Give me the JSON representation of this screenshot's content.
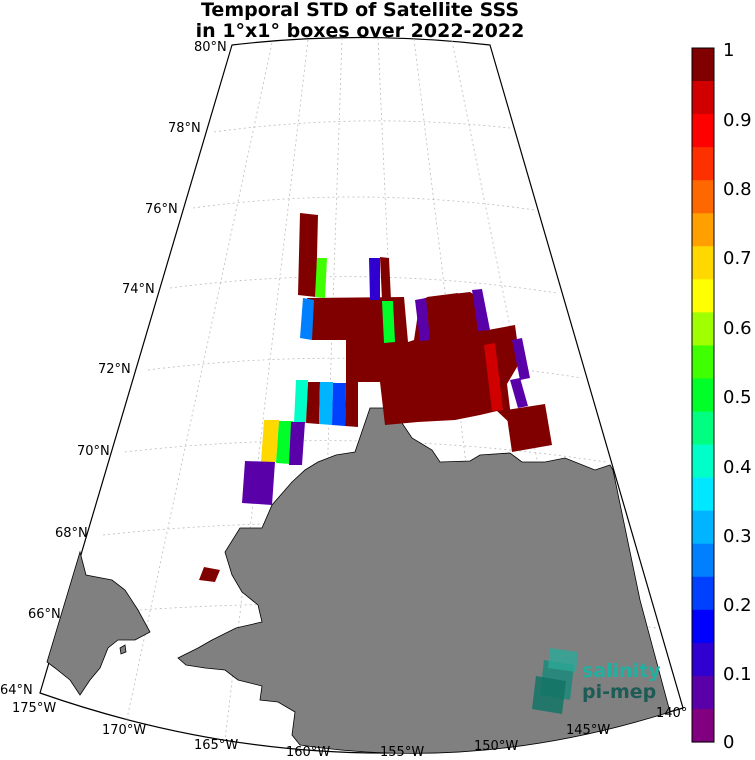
{
  "title": {
    "line1": "Temporal STD of Satellite SSS",
    "line2": "in 1°x1° boxes over 2022-2022"
  },
  "map": {
    "land_color": "#808080",
    "lat_labels": [
      "80°N",
      "78°N",
      "76°N",
      "74°N",
      "72°N",
      "70°N",
      "68°N",
      "66°N",
      "64°N"
    ],
    "lon_labels": [
      "175°W",
      "170°W",
      "165°W",
      "160°W",
      "155°W",
      "150°W",
      "145°W",
      "140°"
    ]
  },
  "colorbar": {
    "ticks": [
      "1",
      "0.9",
      "0.8",
      "0.7",
      "0.6",
      "0.5",
      "0.4",
      "0.3",
      "0.2",
      "0.1",
      "0"
    ],
    "colors": [
      "#800080",
      "#5a00a8",
      "#3000d0",
      "#0000ff",
      "#0040ff",
      "#0080ff",
      "#00b4ff",
      "#00e8ff",
      "#00ffc8",
      "#00ff80",
      "#00ff28",
      "#40ff00",
      "#a0ff00",
      "#ffff00",
      "#ffd800",
      "#ffa000",
      "#ff6800",
      "#ff3000",
      "#ff0000",
      "#d00000",
      "#800000"
    ]
  },
  "logo": {
    "line1": "salinity",
    "line2": "pi-mep"
  },
  "chart_data": {
    "type": "heatmap",
    "title": "Temporal STD of Satellite SSS in 1°x1° boxes over 2022-2022",
    "colorbar_range": [
      0,
      1
    ],
    "cells": [
      {
        "lon": "161-160°W",
        "lat": "74-76°N",
        "std": 1.0
      },
      {
        "lon": "162-161°W",
        "lat": "73-74°N",
        "std": 0.25
      },
      {
        "lon": "161-160°W",
        "lat": "73-74°N",
        "std": 0.57
      },
      {
        "lon": "156-155°W",
        "lat": "73-74°N",
        "std": 0.08
      },
      {
        "lon": "155-154°W",
        "lat": "73-74°N",
        "std": 1.0
      },
      {
        "lon": "152-150°W",
        "lat": "72-73°N",
        "std": 1.0
      },
      {
        "lon": "153-152°W",
        "lat": "72-73°N",
        "std": 0.05
      },
      {
        "lon": "149-148°W",
        "lat": "72-73°N",
        "std": 0.05
      },
      {
        "lon": "155-154°W",
        "lat": "72-73°N",
        "std": 0.52
      },
      {
        "lon": "146-145°W",
        "lat": "71-72°N",
        "std": 0.05
      },
      {
        "lon": "147-146°W",
        "lat": "70-71°N",
        "std": 0.94
      },
      {
        "lon": "145-144°W",
        "lat": "70-71°N",
        "std": 0.05
      },
      {
        "lon": "160-159°W",
        "lat": "71-72°N",
        "std": 0.38
      },
      {
        "lon": "159-158°W",
        "lat": "71-72°N",
        "std": 1.0
      },
      {
        "lon": "158-157°W",
        "lat": "71-72°N",
        "std": 0.28
      },
      {
        "lon": "157-156°W",
        "lat": "71-72°N",
        "std": 0.2
      },
      {
        "lon": "156-155°W",
        "lat": "71-72°N",
        "std": 1.0
      },
      {
        "lon": "162-161°W",
        "lat": "70-71°N",
        "std": 0.72
      },
      {
        "lon": "161-160°W",
        "lat": "70-71°N",
        "std": 0.52
      },
      {
        "lon": "160-159°W",
        "lat": "70-71°N",
        "std": 0.05
      },
      {
        "lon": "163-161°W",
        "lat": "69-70°N",
        "std": 0.05
      },
      {
        "lon": "165-164°W",
        "lat": "67-68°N",
        "std": 1.0
      },
      {
        "lon": "144-142°W",
        "lat": "70-71°N",
        "std": 1.0
      }
    ]
  }
}
